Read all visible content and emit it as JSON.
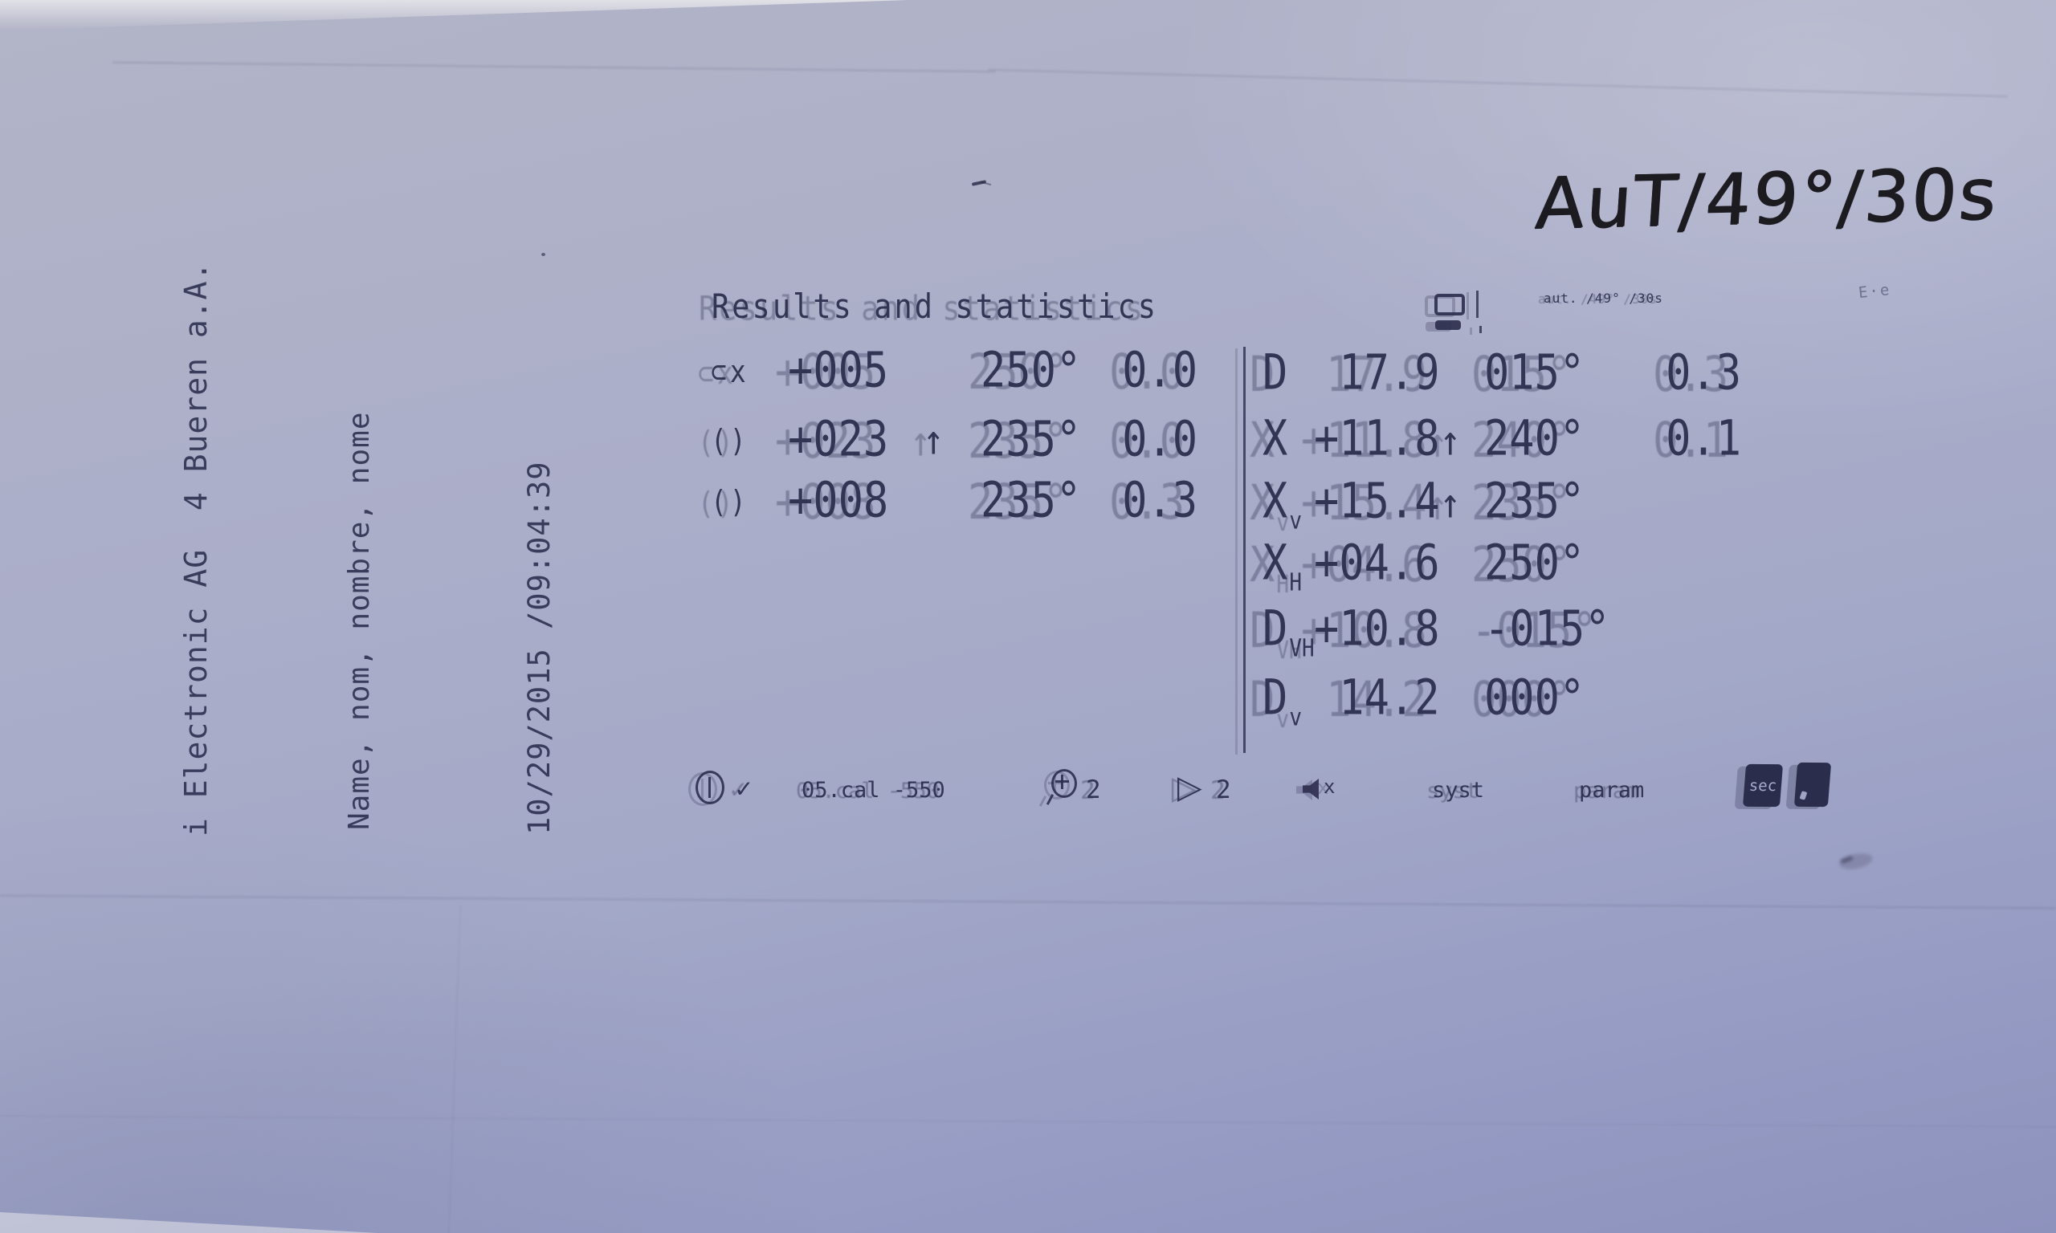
{
  "handwriting": {
    "note": "AuT/49°/30s"
  },
  "print": {
    "title": "Results and statistics",
    "mode_line": "aut. /49° /30s",
    "sidebar": {
      "vendor": "i Electronic AG  4 Bueren a.A.",
      "name_labels": "Name, nom, nombre, nome",
      "datetime": "10/29/2015 /09:04:39"
    },
    "left_table": {
      "rows": [
        {
          "sym": "⊂x",
          "value": "+005",
          "arrow": "",
          "angle": "250°",
          "stat": "0.0"
        },
        {
          "sym": "()",
          "value": "+023",
          "arrow": "↑",
          "angle": "235°",
          "stat": "0.0"
        },
        {
          "sym": "()",
          "value": "+008",
          "arrow": "",
          "angle": "235°",
          "stat": "0.3"
        }
      ]
    },
    "right_table": {
      "rows": [
        {
          "label": "D",
          "sub": "",
          "value": " 17.9",
          "arrow": "",
          "angle": "015°",
          "stat": "0.3"
        },
        {
          "label": "X",
          "sub": "",
          "value": "+11.8",
          "arrow": "↑",
          "angle": "240°",
          "stat": "0.1"
        },
        {
          "label": "X",
          "sub": "v",
          "value": "+15.4",
          "arrow": "↑",
          "angle": "235°",
          "stat": ""
        },
        {
          "label": "X",
          "sub": "H",
          "value": "+04.6",
          "arrow": "",
          "angle": "250°",
          "stat": ""
        },
        {
          "label": "D",
          "sub": "VH",
          "value": "+10.8",
          "arrow": "",
          "angle": "-015°",
          "stat": ""
        },
        {
          "label": "D",
          "sub": "v",
          "value": " 14.2",
          "arrow": "",
          "angle": "000°",
          "stat": ""
        }
      ]
    },
    "bottom_bar": {
      "check": "✓",
      "cal_text": "05.cal -550",
      "zoom_value": "2",
      "play_symbol": "▷",
      "play_value": "2",
      "mute_label": "x",
      "syst_label": "syst",
      "param_label": "param",
      "sec_label": "sec"
    }
  },
  "faint_marks": {
    "pencil": "E·e"
  },
  "icons": {
    "power": "circle-with-vertical-bar",
    "magnifier_plus": "zoom-in-magnifier",
    "play": "outline-triangle",
    "speaker_mute": "speaker-with-x",
    "paper_feed": "outline-box-over-solid-box",
    "sec_badge": "inverted-sec-key",
    "solid_badge": "dark-filled-key"
  },
  "colors": {
    "paper_top": "#b2b4c7",
    "paper_bottom": "#8d92bd",
    "ink": "#2c2e4e",
    "marker": "#1b1b20",
    "badge_bg": "#2b2d4c"
  }
}
